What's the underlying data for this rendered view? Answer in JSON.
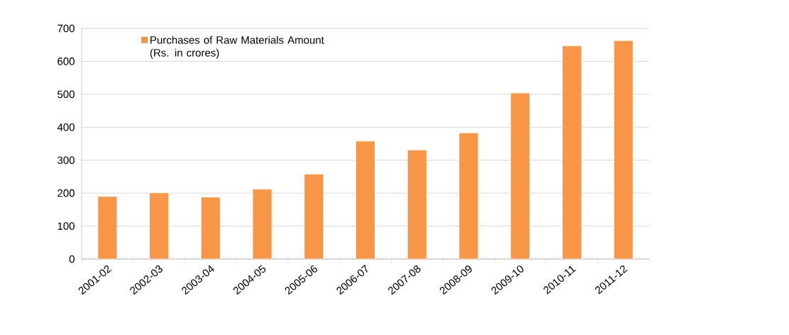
{
  "chart_data": {
    "type": "bar",
    "categories": [
      "2001-02",
      "2002-03",
      "2003-04",
      "2004-05",
      "2005-06",
      "2006-07",
      "2007-08",
      "2008-09",
      "2009-10",
      "2010-11",
      "2011-12"
    ],
    "series": [
      {
        "name": "Purchases of Raw Materials Amount (Rs. in crores)",
        "color": "#f79646",
        "values": [
          190,
          201,
          188,
          212,
          258,
          358,
          331,
          383,
          504,
          647,
          663
        ]
      }
    ],
    "ylim": [
      0,
      700
    ],
    "yticks": [
      0,
      100,
      200,
      300,
      400,
      500,
      600,
      700
    ],
    "grid": "y",
    "legend": "top left"
  }
}
